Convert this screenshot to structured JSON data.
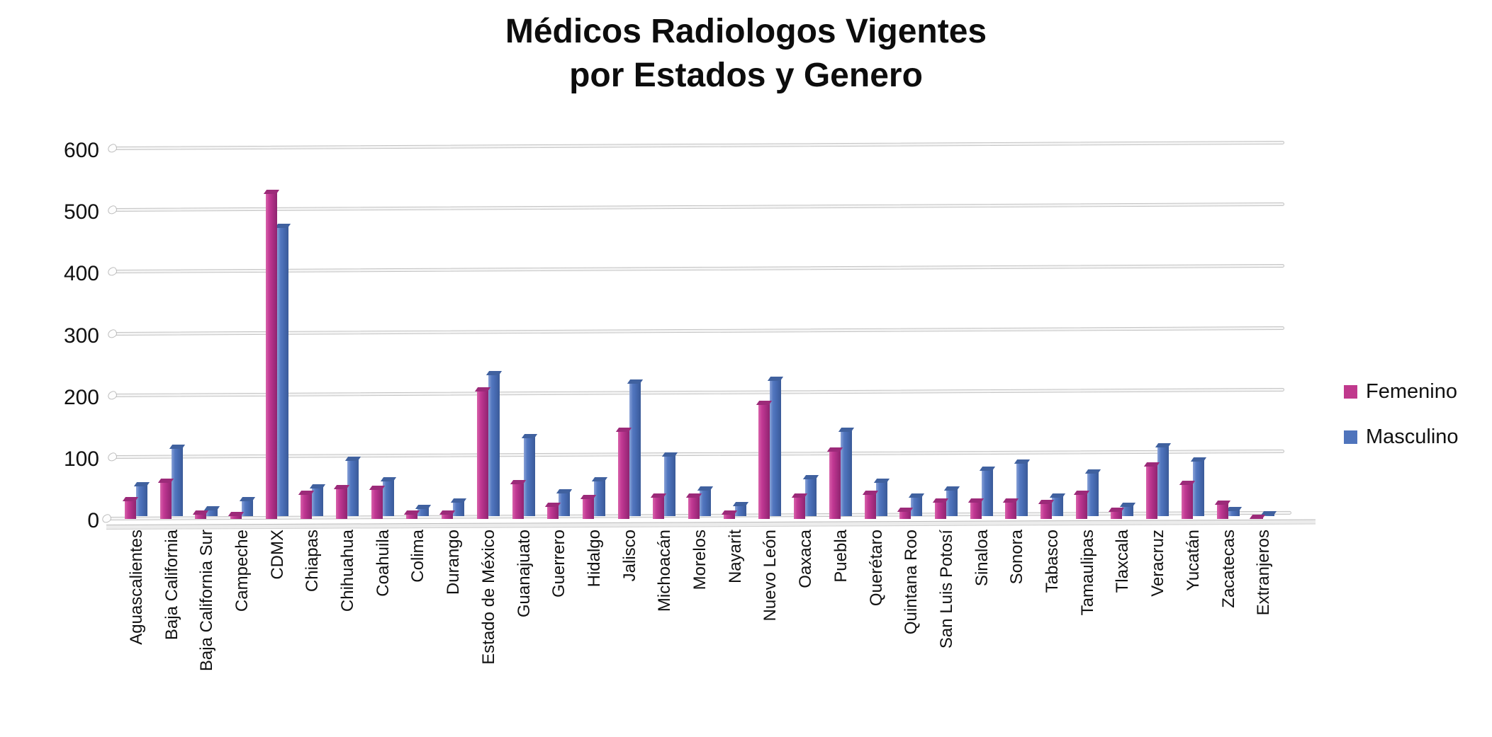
{
  "title": {
    "line1": "Médicos Radiologos Vigentes",
    "line2": "por Estados y Genero"
  },
  "legend": [
    {
      "label": "Femenino",
      "color": "#C0398D"
    },
    {
      "label": "Masculino",
      "color": "#4F74BC"
    }
  ],
  "chart_data": {
    "type": "bar",
    "title": "Médicos Radiologos Vigentes por Estados y Genero",
    "xlabel": "",
    "ylabel": "",
    "ylim": [
      0,
      600
    ],
    "yticks": [
      0,
      100,
      200,
      300,
      400,
      500,
      600
    ],
    "grid": true,
    "legend_position": "right",
    "style": "3d-bars",
    "categories": [
      "Aguascalientes",
      "Baja California",
      "Baja California Sur",
      "Campeche",
      "CDMX",
      "Chiapas",
      "Chihuahua",
      "Coahuila",
      "Colima",
      "Durango",
      "Estado de México",
      "Guanajuato",
      "Guerrero",
      "Hidalgo",
      "Jalisco",
      "Michoacán",
      "Morelos",
      "Nayarit",
      "Nuevo León",
      "Oaxaca",
      "Puebla",
      "Querétaro",
      "Quintana Roo",
      "San Luis Potosí",
      "Sinaloa",
      "Sonora",
      "Tabasco",
      "Tamaulipas",
      "Tlaxcala",
      "Veracruz",
      "Yucatán",
      "Zacatecas",
      "Extranjeros"
    ],
    "series": [
      {
        "name": "Femenino",
        "color": "#C0398D",
        "values": [
          32,
          62,
          10,
          8,
          530,
          42,
          52,
          50,
          10,
          10,
          210,
          60,
          23,
          36,
          145,
          38,
          38,
          10,
          188,
          38,
          113,
          42,
          15,
          30,
          30,
          30,
          28,
          42,
          15,
          88,
          58,
          26,
          4
        ]
      },
      {
        "name": "Masculino",
        "color": "#4F74BC",
        "values": [
          52,
          112,
          13,
          28,
          470,
          48,
          93,
          60,
          15,
          25,
          232,
          130,
          40,
          60,
          218,
          100,
          45,
          20,
          222,
          63,
          140,
          57,
          33,
          45,
          77,
          88,
          33,
          72,
          18,
          115,
          92,
          12,
          5
        ]
      }
    ]
  }
}
